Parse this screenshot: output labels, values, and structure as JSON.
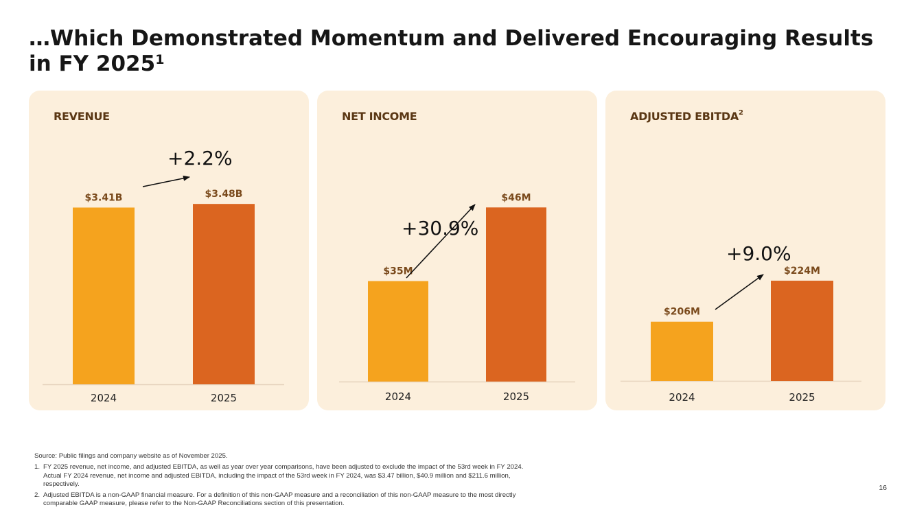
{
  "slide": {
    "title": "…Which Demonstrated Momentum and Delivered Encouraging Results in FY 2025",
    "title_superscript": "1",
    "page_number": "16"
  },
  "colors": {
    "panel_bg": "#fcefdc",
    "bar_2024": "#f5a31e",
    "bar_2025": "#db6520",
    "panel_title": "#5a3714",
    "bar_label": "#7a4a1c"
  },
  "chart_data": [
    {
      "type": "bar",
      "title": "REVENUE",
      "title_superscript": "",
      "categories": [
        "2024",
        "2025"
      ],
      "values": [
        3.41,
        3.48
      ],
      "labels": [
        "$3.41B",
        "$3.48B"
      ],
      "unit": "$B",
      "ylim": [
        0,
        3.8
      ],
      "change_label": "+2.2%"
    },
    {
      "type": "bar",
      "title": "NET INCOME",
      "title_superscript": "",
      "categories": [
        "2024",
        "2025"
      ],
      "values": [
        35,
        46
      ],
      "labels": [
        "$35M",
        "$46M"
      ],
      "unit": "$M",
      "ylim": [
        20,
        49
      ],
      "change_label": "+30.9%"
    },
    {
      "type": "bar",
      "title": "ADJUSTED EBITDA",
      "title_superscript": "2",
      "categories": [
        "2024",
        "2025"
      ],
      "values": [
        206,
        224
      ],
      "labels": [
        "$206M",
        "$224M"
      ],
      "unit": "$M",
      "ylim": [
        180,
        265
      ],
      "change_label": "+9.0%"
    }
  ],
  "footnotes": {
    "source": "Source: Public filings and company website as of November 2025.",
    "notes": [
      {
        "num": "1.",
        "text": "FY 2025 revenue, net income, and adjusted EBITDA, as well as year over year comparisons, have been adjusted to exclude the impact of the 53rd week in FY 2024. Actual FY 2024 revenue, net income and adjusted EBITDA, including the impact of the 53rd week in FY 2024, was $3.47 billion, $40.9 million and $211.6 million, respectively."
      },
      {
        "num": "2.",
        "text": "Adjusted EBITDA is a non-GAAP financial measure. For a definition of this non-GAAP measure and a reconciliation of this non-GAAP measure to the most directly comparable GAAP measure, please refer to the Non-GAAP Reconciliations section of this presentation."
      }
    ]
  }
}
